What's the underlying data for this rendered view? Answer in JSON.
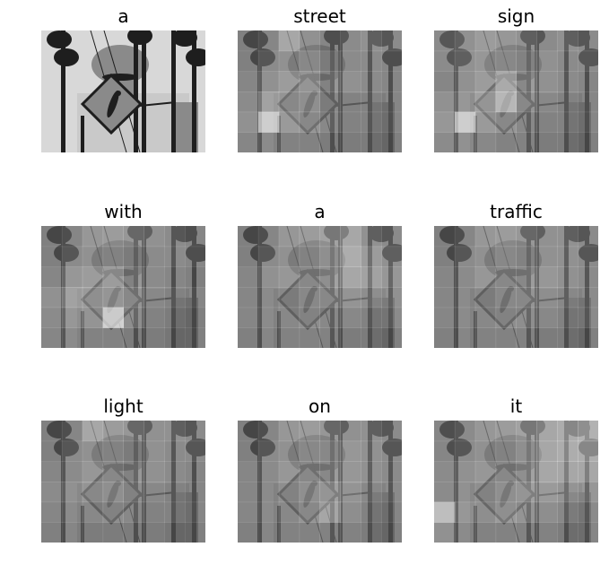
{
  "panels": [
    {
      "word": "a",
      "attention": null
    },
    {
      "word": "street",
      "attention": [
        [
          0.2,
          0.25,
          0.55,
          0.35,
          0.25,
          0.3,
          0.35,
          0.3
        ],
        [
          0.2,
          0.3,
          0.35,
          0.45,
          0.35,
          0.3,
          0.3,
          0.25
        ],
        [
          0.25,
          0.35,
          0.45,
          0.55,
          0.4,
          0.35,
          0.3,
          0.25
        ],
        [
          0.3,
          0.5,
          0.45,
          0.5,
          0.35,
          0.3,
          0.3,
          0.25
        ],
        [
          0.35,
          0.9,
          0.5,
          0.45,
          0.35,
          0.3,
          0.3,
          0.25
        ],
        [
          0.25,
          0.3,
          0.3,
          0.3,
          0.25,
          0.25,
          0.25,
          0.2
        ]
      ]
    },
    {
      "word": "sign",
      "attention": [
        [
          0.3,
          0.35,
          0.45,
          0.4,
          0.35,
          0.3,
          0.35,
          0.3
        ],
        [
          0.3,
          0.35,
          0.4,
          0.45,
          0.4,
          0.35,
          0.3,
          0.3
        ],
        [
          0.25,
          0.35,
          0.45,
          0.7,
          0.45,
          0.35,
          0.3,
          0.25
        ],
        [
          0.35,
          0.4,
          0.55,
          0.8,
          0.45,
          0.35,
          0.3,
          0.25
        ],
        [
          0.4,
          0.9,
          0.5,
          0.45,
          0.35,
          0.3,
          0.3,
          0.25
        ],
        [
          0.3,
          0.35,
          0.35,
          0.3,
          0.3,
          0.25,
          0.25,
          0.2
        ]
      ]
    },
    {
      "word": "with",
      "attention": [
        [
          0.2,
          0.25,
          0.4,
          0.45,
          0.4,
          0.35,
          0.3,
          0.25
        ],
        [
          0.2,
          0.3,
          0.35,
          0.4,
          0.35,
          0.3,
          0.3,
          0.25
        ],
        [
          0.25,
          0.4,
          0.45,
          0.6,
          0.4,
          0.3,
          0.25,
          0.2
        ],
        [
          0.35,
          0.5,
          0.5,
          0.55,
          0.45,
          0.35,
          0.3,
          0.25
        ],
        [
          0.3,
          0.4,
          0.45,
          0.95,
          0.4,
          0.3,
          0.25,
          0.2
        ],
        [
          0.25,
          0.3,
          0.3,
          0.3,
          0.25,
          0.25,
          0.2,
          0.2
        ]
      ]
    },
    {
      "word": "a",
      "attention": [
        [
          0.2,
          0.25,
          0.4,
          0.45,
          0.5,
          0.55,
          0.35,
          0.3
        ],
        [
          0.2,
          0.3,
          0.35,
          0.4,
          0.5,
          0.6,
          0.45,
          0.35
        ],
        [
          0.25,
          0.35,
          0.4,
          0.45,
          0.5,
          0.55,
          0.5,
          0.4
        ],
        [
          0.25,
          0.3,
          0.35,
          0.45,
          0.45,
          0.45,
          0.4,
          0.35
        ],
        [
          0.25,
          0.3,
          0.35,
          0.4,
          0.35,
          0.35,
          0.3,
          0.3
        ],
        [
          0.2,
          0.25,
          0.3,
          0.3,
          0.3,
          0.25,
          0.25,
          0.2
        ]
      ]
    },
    {
      "word": "traffic",
      "attention": [
        [
          0.2,
          0.25,
          0.4,
          0.45,
          0.4,
          0.35,
          0.35,
          0.3
        ],
        [
          0.2,
          0.3,
          0.35,
          0.45,
          0.4,
          0.35,
          0.35,
          0.3
        ],
        [
          0.25,
          0.3,
          0.4,
          0.45,
          0.45,
          0.4,
          0.35,
          0.3
        ],
        [
          0.25,
          0.3,
          0.35,
          0.45,
          0.45,
          0.4,
          0.35,
          0.3
        ],
        [
          0.25,
          0.3,
          0.35,
          0.4,
          0.4,
          0.35,
          0.3,
          0.3
        ],
        [
          0.2,
          0.25,
          0.3,
          0.3,
          0.3,
          0.25,
          0.25,
          0.2
        ]
      ]
    },
    {
      "word": "light",
      "attention": [
        [
          0.2,
          0.25,
          0.55,
          0.45,
          0.4,
          0.35,
          0.35,
          0.3
        ],
        [
          0.2,
          0.3,
          0.35,
          0.4,
          0.35,
          0.35,
          0.3,
          0.3
        ],
        [
          0.25,
          0.3,
          0.4,
          0.45,
          0.4,
          0.35,
          0.3,
          0.25
        ],
        [
          0.3,
          0.35,
          0.45,
          0.5,
          0.4,
          0.35,
          0.3,
          0.25
        ],
        [
          0.25,
          0.3,
          0.35,
          0.4,
          0.35,
          0.3,
          0.3,
          0.25
        ],
        [
          0.2,
          0.25,
          0.25,
          0.25,
          0.25,
          0.25,
          0.2,
          0.2
        ]
      ]
    },
    {
      "word": "on",
      "attention": [
        [
          0.2,
          0.25,
          0.4,
          0.45,
          0.4,
          0.35,
          0.35,
          0.3
        ],
        [
          0.2,
          0.3,
          0.35,
          0.45,
          0.45,
          0.4,
          0.35,
          0.3
        ],
        [
          0.25,
          0.3,
          0.4,
          0.45,
          0.45,
          0.4,
          0.35,
          0.3
        ],
        [
          0.25,
          0.3,
          0.4,
          0.5,
          0.55,
          0.45,
          0.35,
          0.3
        ],
        [
          0.25,
          0.3,
          0.35,
          0.45,
          0.6,
          0.4,
          0.3,
          0.25
        ],
        [
          0.2,
          0.25,
          0.3,
          0.3,
          0.3,
          0.3,
          0.25,
          0.2
        ]
      ]
    },
    {
      "word": "it",
      "attention": [
        [
          0.25,
          0.3,
          0.4,
          0.45,
          0.5,
          0.55,
          0.6,
          0.65
        ],
        [
          0.25,
          0.3,
          0.35,
          0.4,
          0.5,
          0.55,
          0.6,
          0.6
        ],
        [
          0.3,
          0.35,
          0.4,
          0.45,
          0.5,
          0.55,
          0.55,
          0.55
        ],
        [
          0.3,
          0.35,
          0.4,
          0.5,
          0.55,
          0.5,
          0.45,
          0.4
        ],
        [
          0.75,
          0.4,
          0.4,
          0.5,
          0.45,
          0.4,
          0.35,
          0.3
        ],
        [
          0.35,
          0.3,
          0.3,
          0.3,
          0.3,
          0.3,
          0.25,
          0.25
        ]
      ]
    }
  ]
}
